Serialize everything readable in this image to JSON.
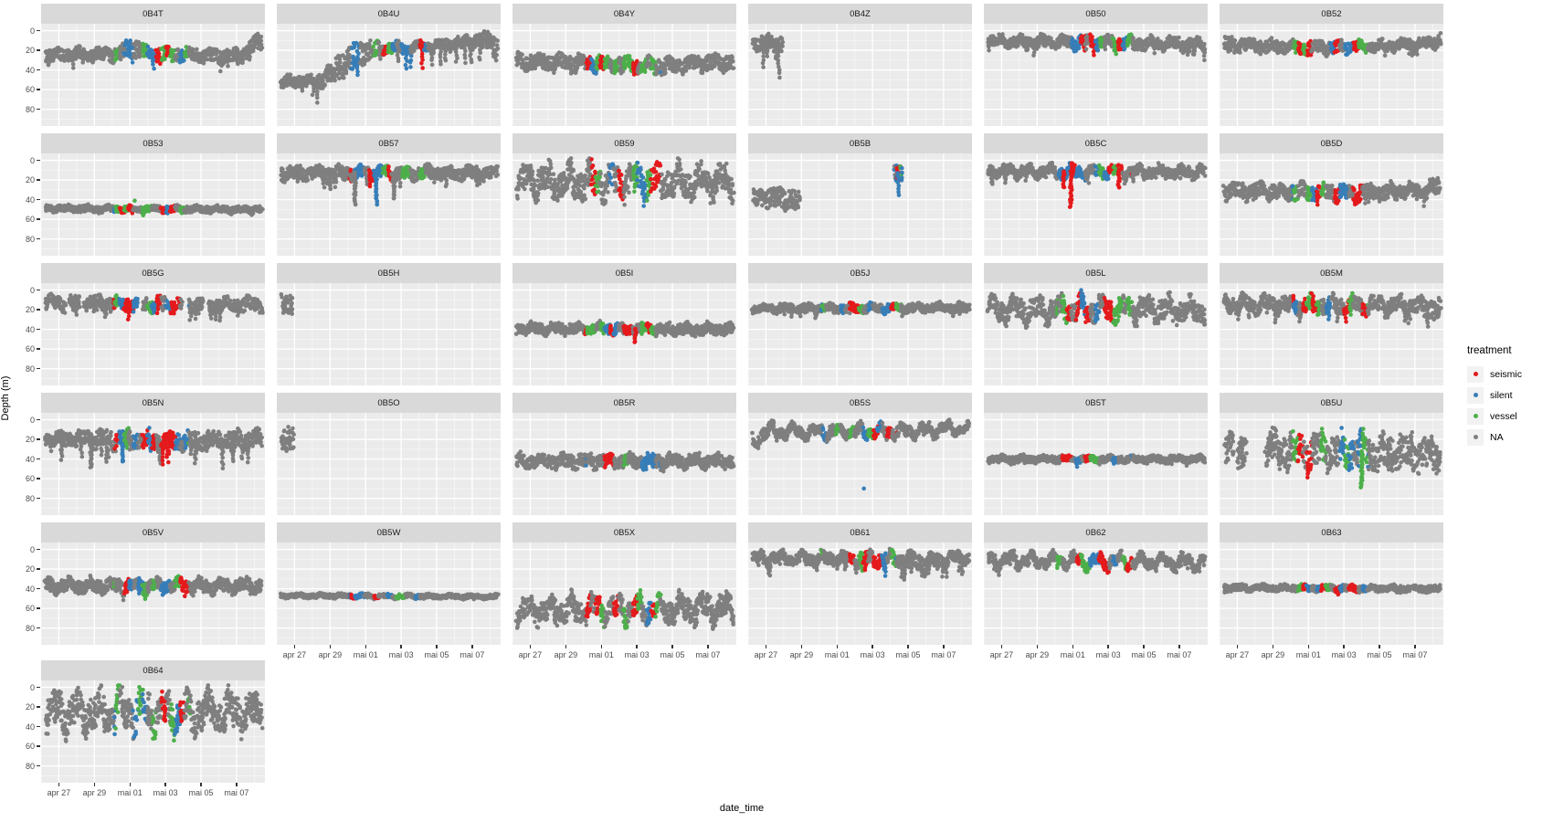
{
  "axes": {
    "x_label": "date_time",
    "y_label": "Depth (m)",
    "y_ticks": [
      "0",
      "20",
      "40",
      "60",
      "80"
    ],
    "x_ticks": [
      "apr 27",
      "apr 29",
      "mai 01",
      "mai 03",
      "mai 05",
      "mai 07"
    ]
  },
  "legend": {
    "title": "treatment",
    "items": [
      {
        "label": "seismic",
        "color": "#E41A1C"
      },
      {
        "label": "silent",
        "color": "#377EB8"
      },
      {
        "label": "vessel",
        "color": "#4DAF4A"
      },
      {
        "label": "NA",
        "color": "#7F7F7F"
      }
    ]
  },
  "colors": {
    "panel_bg": "#EBEBEB",
    "strip_bg": "#D9D9D9",
    "grid_major": "rgba(255,255,255,1)",
    "grid_minor": "rgba(255,255,255,0.55)",
    "axis_text": "#4D4D4D",
    "legend_key_bg": "#F2F2F2",
    "na": "#7F7F7F",
    "seismic": "#E41A1C",
    "silent": "#377EB8",
    "vessel": "#4DAF4A"
  },
  "chart_data": {
    "type": "scatter",
    "title": "",
    "xlabel": "date_time",
    "ylabel": "Depth (m)",
    "facet_variable": "fish tag id",
    "y_reversed": true,
    "y_major_ticks": [
      0,
      20,
      40,
      60,
      80
    ],
    "y_minor_ticks": [
      10,
      30,
      50,
      70,
      90
    ],
    "y_view_range": [
      -7,
      97
    ],
    "x_domain_days": 12.6,
    "x_day0": "apr 26",
    "x_major_tick_days": [
      1,
      3,
      5,
      7,
      9,
      11
    ],
    "x_minor_tick_days": [
      0,
      2,
      4,
      6,
      8,
      10,
      12
    ],
    "x_tick_labels": [
      "apr 27",
      "apr 29",
      "mai 01",
      "mai 03",
      "mai 05",
      "mai 07"
    ],
    "treatment_window_days": [
      4.1,
      8.35
    ],
    "legend_entries": [
      "seismic",
      "silent",
      "vessel",
      "NA"
    ],
    "facets": [
      {
        "name": "0B4T",
        "band": [
          [
            0.25,
            25,
            6
          ],
          [
            4,
            24,
            6
          ],
          [
            5.2,
            17,
            9
          ],
          [
            6,
            23,
            6
          ],
          [
            9,
            25,
            6
          ],
          [
            11.2,
            26,
            6
          ],
          [
            12,
            14,
            8
          ],
          [
            12.45,
            10,
            7
          ]
        ],
        "wave": 2,
        "spike": [
          13,
          0.04
        ]
      },
      {
        "name": "0B4U",
        "band": [
          [
            0.25,
            53,
            5
          ],
          [
            2.6,
            50,
            7
          ],
          [
            3.4,
            38,
            12
          ],
          [
            4.2,
            27,
            14
          ],
          [
            5,
            22,
            12
          ],
          [
            5.8,
            18,
            5
          ],
          [
            9,
            16,
            5
          ],
          [
            11,
            11,
            6
          ],
          [
            12,
            8,
            6
          ],
          [
            12.45,
            20,
            13
          ]
        ],
        "wave": 2,
        "spike": [
          22,
          0.06
        ],
        "colored": [
          4.2,
          8.5
        ],
        "weights": [
          0.3,
          0.12,
          0.46,
          0.12
        ]
      },
      {
        "name": "0B4Y",
        "band": [
          [
            0.25,
            31,
            7
          ],
          [
            4,
            33,
            7
          ],
          [
            8,
            36,
            7
          ],
          [
            12.45,
            32,
            7
          ]
        ],
        "wave": 2.5,
        "spike": [
          10,
          0.04
        ]
      },
      {
        "name": "0B4Z",
        "cover": [
          [
            0.3,
            1.95
          ]
        ],
        "band": [
          [
            0.3,
            12,
            7
          ],
          [
            1.95,
            14,
            8
          ]
        ],
        "wave": 2,
        "spike": [
          36,
          0.12
        ],
        "colored": null
      },
      {
        "name": "0B50",
        "band": [
          [
            0.25,
            11,
            5
          ],
          [
            6,
            12,
            6
          ],
          [
            12.45,
            14,
            5
          ]
        ],
        "wave": 2.5,
        "spike": [
          12,
          0.05
        ]
      },
      {
        "name": "0B52",
        "band": [
          [
            0.25,
            13,
            6
          ],
          [
            4.5,
            18,
            6
          ],
          [
            8.5,
            16,
            5
          ],
          [
            11.8,
            13,
            5
          ],
          [
            12.45,
            8,
            6
          ]
        ],
        "wave": 2,
        "spike": [
          10,
          0.04
        ]
      },
      {
        "name": "0B53",
        "band": [
          [
            0.25,
            49,
            3
          ],
          [
            12.45,
            50,
            3
          ]
        ],
        "wave": 1,
        "spike": [
          6,
          0.03
        ],
        "outliers": [
          [
            5.3,
            41,
            "vessel"
          ]
        ]
      },
      {
        "name": "0B57",
        "band": [
          [
            0.25,
            13,
            6
          ],
          [
            12.45,
            13,
            6
          ]
        ],
        "wave": 2.5,
        "spike": [
          16,
          0.05
        ],
        "deep": [
          [
            3.0,
            32
          ],
          [
            4.4,
            46
          ],
          [
            5.6,
            48
          ],
          [
            6.6,
            40
          ]
        ]
      },
      {
        "name": "0B59",
        "band": [
          [
            0.25,
            22,
            13
          ],
          [
            12.45,
            22,
            13
          ]
        ],
        "wave": 8,
        "spike": [
          13,
          0.08
        ],
        "updown": true
      },
      {
        "name": "0B5B",
        "cover": [
          [
            0.3,
            2.9
          ]
        ],
        "band": [
          [
            0.3,
            38,
            9
          ],
          [
            2.9,
            40,
            10
          ]
        ],
        "wave": 2,
        "spike": [
          10,
          0.05
        ],
        "colored": null,
        "events": [
          {
            "t": [
              8.25,
              8.65
            ],
            "mid": 13,
            "half": 8,
            "tail": [
              8.45,
              36
            ]
          }
        ]
      },
      {
        "name": "0B5C",
        "band": [
          [
            0.25,
            11,
            5
          ],
          [
            12.45,
            12,
            5
          ]
        ],
        "wave": 3,
        "spike": [
          13,
          0.05
        ],
        "deep": [
          [
            4.5,
            30,
            "seismic"
          ],
          [
            4.9,
            47,
            "seismic"
          ],
          [
            7.6,
            29,
            "seismic"
          ]
        ]
      },
      {
        "name": "0B5D",
        "band": [
          [
            0.25,
            31,
            7
          ],
          [
            8.5,
            33,
            7
          ],
          [
            11.5,
            30,
            6
          ],
          [
            12.45,
            26,
            8
          ]
        ],
        "wave": 3,
        "spike": [
          12,
          0.05
        ]
      },
      {
        "name": "0B5G",
        "cover": [
          [
            0.25,
            1.35
          ],
          [
            1.6,
            2.15
          ],
          [
            2.45,
            5.45
          ],
          [
            5.75,
            7.95
          ],
          [
            8.3,
            9.15
          ],
          [
            9.45,
            12.45
          ]
        ],
        "band": [
          [
            0.25,
            13,
            6
          ],
          [
            12.45,
            15,
            6
          ]
        ],
        "wave": 3,
        "spike": [
          15,
          0.07
        ]
      },
      {
        "name": "0B5H",
        "cover": [
          [
            0.3,
            0.85
          ]
        ],
        "band": [
          [
            0.3,
            14,
            9
          ],
          [
            0.85,
            15,
            9
          ]
        ],
        "wave": 2,
        "spike": [
          12,
          0.1
        ],
        "colored": null
      },
      {
        "name": "0B5I",
        "band": [
          [
            0.25,
            39,
            5
          ],
          [
            12.45,
            40,
            5
          ]
        ],
        "wave": 2,
        "spike": [
          8,
          0.04
        ],
        "deep": [
          [
            6.9,
            53,
            "seismic"
          ]
        ]
      },
      {
        "name": "0B5J",
        "band": [
          [
            0.25,
            19,
            4
          ],
          [
            12.45,
            18,
            4
          ]
        ],
        "wave": 1.5,
        "spike": [
          10,
          0.04
        ],
        "colored": [
          4.1,
          8.6
        ],
        "weights": [
          0.3,
          0.08,
          0.55,
          0.07
        ]
      },
      {
        "name": "0B5L",
        "band": [
          [
            0.25,
            20,
            9
          ],
          [
            12.45,
            20,
            9
          ]
        ],
        "wave": 6,
        "spike": [
          10,
          0.06
        ],
        "updown": true
      },
      {
        "name": "0B5M",
        "band": [
          [
            0.25,
            14,
            7
          ],
          [
            11,
            16,
            7
          ],
          [
            12.45,
            20,
            11
          ]
        ],
        "wave": 4,
        "spike": [
          17,
          0.06
        ]
      },
      {
        "name": "0B5N",
        "band": [
          [
            0.25,
            19,
            6
          ],
          [
            4,
            20,
            8
          ],
          [
            8.5,
            22,
            8
          ],
          [
            12.45,
            20,
            8
          ]
        ],
        "wave": 3,
        "spike": [
          25,
          0.08
        ],
        "weights": [
          0.3,
          0.23,
          0.24,
          0.23
        ],
        "deep": [
          [
            2.8,
            50,
            "na"
          ]
        ]
      },
      {
        "name": "0B5O",
        "cover": [
          [
            0.3,
            0.95
          ]
        ],
        "band": [
          [
            0.3,
            20,
            12
          ],
          [
            0.95,
            22,
            12
          ]
        ],
        "wave": 2,
        "spike": [
          13,
          0.1
        ],
        "colored": null
      },
      {
        "name": "0B5R",
        "band": [
          [
            0.25,
            42,
            6
          ],
          [
            12.45,
            42,
            6
          ]
        ],
        "wave": 2.5,
        "spike": [
          8,
          0.04
        ]
      },
      {
        "name": "0B5S",
        "band": [
          [
            0.25,
            24,
            6
          ],
          [
            0.9,
            12,
            5
          ],
          [
            9,
            12,
            5
          ],
          [
            11,
            9,
            4
          ],
          [
            12.45,
            9,
            4
          ]
        ],
        "wave": 4,
        "spike": [
          8,
          0.04
        ],
        "outliers": [
          [
            6.5,
            70,
            "silent"
          ]
        ]
      },
      {
        "name": "0B5T",
        "band": [
          [
            0.25,
            40,
            3
          ],
          [
            12.45,
            40,
            3
          ]
        ],
        "wave": 1.2,
        "spike": [
          6,
          0.04
        ]
      },
      {
        "name": "0B5U",
        "cover": [
          [
            0.3,
            0.8
          ],
          [
            1.0,
            1.5
          ],
          [
            2.6,
            12.45
          ]
        ],
        "band": [
          [
            0.3,
            30,
            15
          ],
          [
            2.6,
            30,
            15
          ],
          [
            12.45,
            35,
            15
          ]
        ],
        "wave": 6,
        "spike": [
          19,
          0.08
        ],
        "updown": true,
        "weights": [
          0.3,
          0.23,
          0.24,
          0.23
        ],
        "deep": [
          [
            8.0,
            68,
            "vessel"
          ]
        ]
      },
      {
        "name": "0B5V",
        "band": [
          [
            0.25,
            37,
            6
          ],
          [
            12.45,
            37,
            6
          ]
        ],
        "wave": 3,
        "spike": [
          10,
          0.05
        ]
      },
      {
        "name": "0B5W",
        "band": [
          [
            0.25,
            47,
            2
          ],
          [
            12.45,
            48,
            2
          ]
        ],
        "wave": 0.8,
        "spike": [
          3,
          0.02
        ]
      },
      {
        "name": "0B5X",
        "band": [
          [
            0.25,
            62,
            10
          ],
          [
            12.45,
            60,
            10
          ]
        ],
        "wave": 7,
        "spike": [
          13,
          0.07
        ],
        "updown": true
      },
      {
        "name": "0B61",
        "band": [
          [
            0.25,
            9,
            5
          ],
          [
            8.5,
            10,
            6
          ],
          [
            10,
            14,
            8
          ],
          [
            11,
            10,
            5
          ],
          [
            12.45,
            7,
            4
          ]
        ],
        "wave": 3.5,
        "spike": [
          18,
          0.06
        ]
      },
      {
        "name": "0B62",
        "band": [
          [
            0.25,
            11,
            5
          ],
          [
            12.45,
            13,
            5
          ]
        ],
        "wave": 4.5,
        "spike": [
          10,
          0.05
        ]
      },
      {
        "name": "0B63",
        "band": [
          [
            0.25,
            39,
            3
          ],
          [
            12.45,
            40,
            3
          ]
        ],
        "wave": 1,
        "spike": [
          5,
          0.03
        ]
      },
      {
        "name": "0B64",
        "band": [
          [
            0.25,
            25,
            15
          ],
          [
            12.45,
            25,
            15
          ]
        ],
        "wave": 10,
        "spike": [
          16,
          0.09
        ],
        "updown": true,
        "colored": [
          4.1,
          8.4
        ]
      }
    ]
  }
}
